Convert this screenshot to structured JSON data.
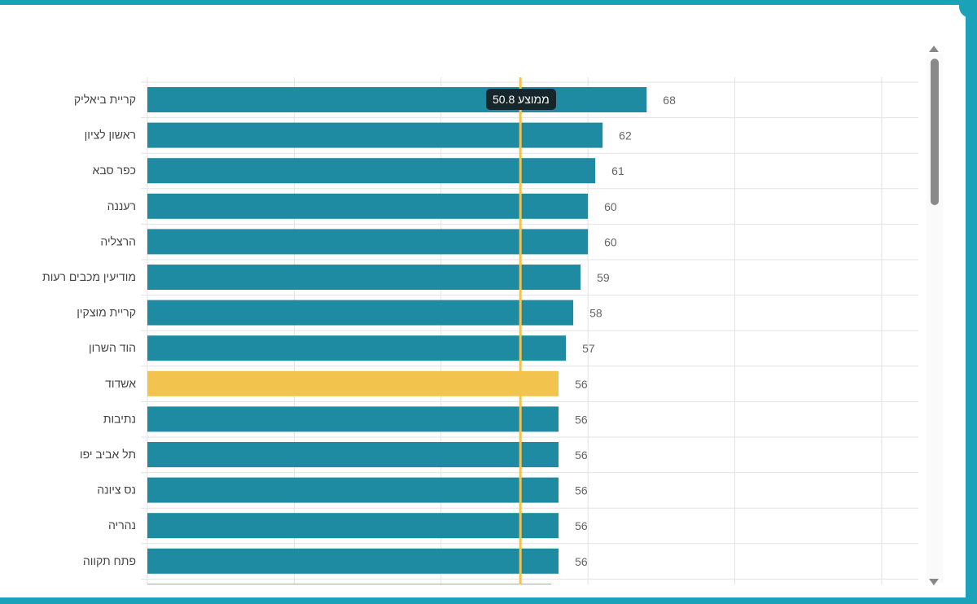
{
  "chart_data": {
    "type": "bar",
    "orientation": "horizontal",
    "categories": [
      "קריית ביאליק",
      "ראשון לציון",
      "כפר סבא",
      "רעננה",
      "הרצליה",
      "מודיעין מכבים רעות",
      "קריית מוצקין",
      "הוד השרון",
      "אשדוד",
      "נתיבות",
      "תל אביב יפו",
      "נס ציונה",
      "נהריה",
      "פתח תקווה",
      ""
    ],
    "values": [
      68,
      62,
      61,
      60,
      60,
      59,
      58,
      57,
      56,
      56,
      56,
      56,
      56,
      56,
      55
    ],
    "highlight_index": 8,
    "colors": {
      "bar": "#1e8ba3",
      "highlight": "#f2c44e",
      "average": "#f2c44e",
      "grid": "#e3e3e3"
    },
    "xlim": [
      0,
      105
    ],
    "grid": true,
    "average": {
      "value": 50.8,
      "label": "ממוצע 50.8"
    }
  }
}
